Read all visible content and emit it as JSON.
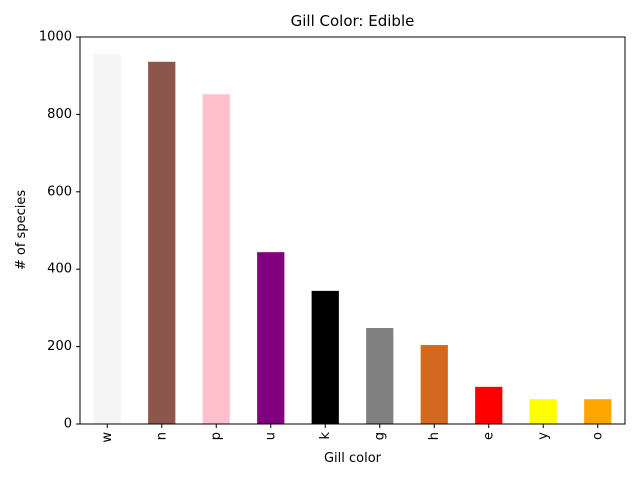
{
  "chart_data": {
    "type": "bar",
    "title": "Gill Color: Edible",
    "xlabel": "Gill color",
    "ylabel": "# of species",
    "categories": [
      "w",
      "n",
      "p",
      "u",
      "k",
      "g",
      "h",
      "e",
      "y",
      "o"
    ],
    "values": [
      956,
      936,
      852,
      444,
      344,
      248,
      204,
      96,
      64,
      64
    ],
    "colors": [
      "#f5f5f5",
      "#8c564b",
      "#ffc0cb",
      "#800080",
      "#000000",
      "#808080",
      "#d2691e",
      "#ff0000",
      "#ffff00",
      "#ffa500"
    ],
    "ylim": [
      0,
      1000
    ],
    "yticks": [
      0,
      200,
      400,
      600,
      800,
      1000
    ],
    "grid": false,
    "legend": "none"
  }
}
